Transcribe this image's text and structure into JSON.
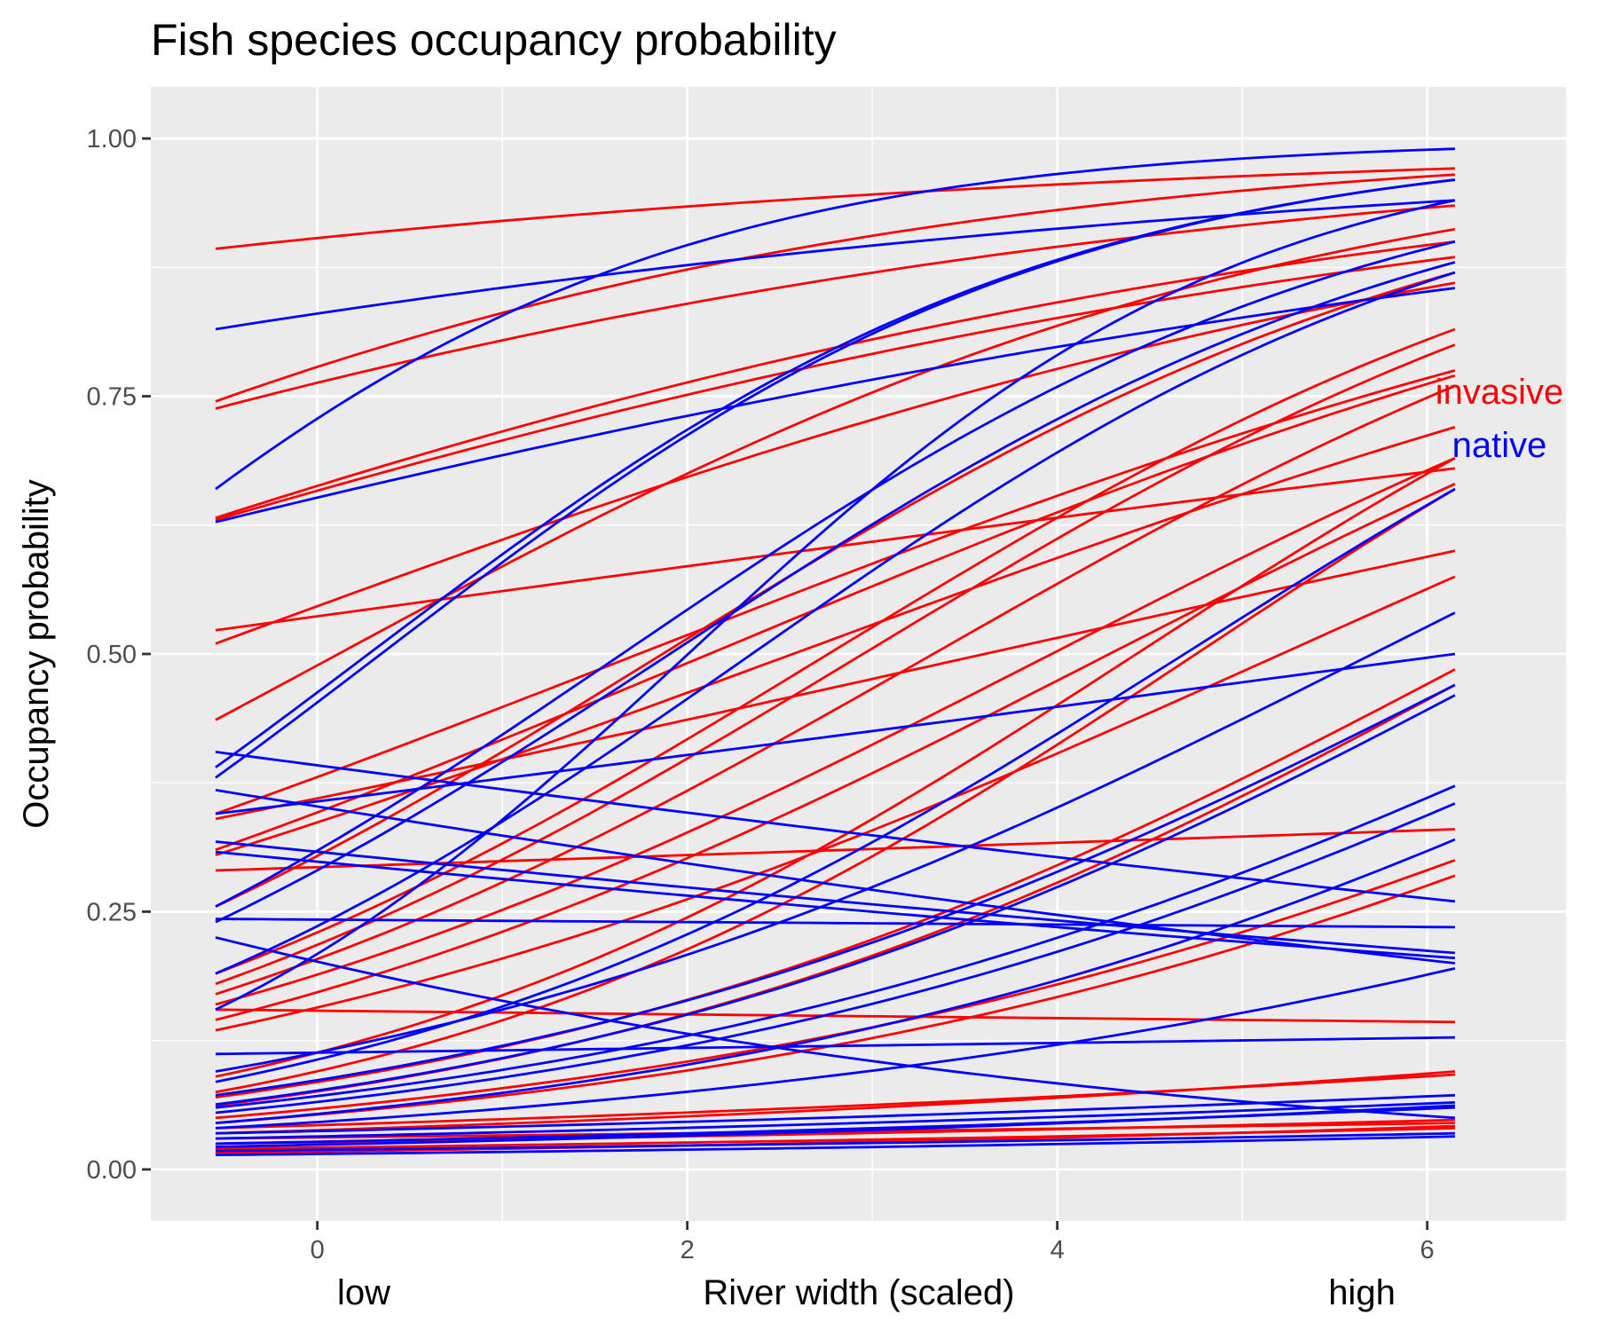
{
  "chart_data": {
    "type": "line",
    "title": "Fish species occupancy probability",
    "xlabel": "River width (scaled)",
    "ylabel": "Occupancy probability",
    "x_extra_labels": {
      "low": "low",
      "high": "high"
    },
    "xlim": [
      -0.9,
      6.75
    ],
    "ylim": [
      -0.05,
      1.05
    ],
    "x_ticks": [
      0,
      2,
      4,
      6
    ],
    "x_tick_labels": [
      "0",
      "2",
      "4",
      "6"
    ],
    "y_ticks": [
      0,
      0.25,
      0.5,
      0.75,
      1.0
    ],
    "y_tick_labels": [
      "0.00",
      "0.25",
      "0.50",
      "0.75",
      "1.00"
    ],
    "x_range": [
      -0.55,
      6.15
    ],
    "grid": true,
    "legend": "direct labels at right end",
    "colors": {
      "invasive": "#ff0000",
      "native": "#0000ff",
      "panel": "#ebebeb",
      "grid": "#ffffff"
    },
    "groups": [
      {
        "name": "invasive",
        "label": "invasive",
        "color": "#ff0000",
        "curves": [
          [
            0.893,
            0.971
          ],
          [
            0.745,
            0.965
          ],
          [
            0.738,
            0.935
          ],
          [
            0.632,
            0.9
          ],
          [
            0.63,
            0.885
          ],
          [
            0.523,
            0.68
          ],
          [
            0.51,
            0.86
          ],
          [
            0.436,
            0.912
          ],
          [
            0.345,
            0.775
          ],
          [
            0.34,
            0.6
          ],
          [
            0.31,
            0.77
          ],
          [
            0.305,
            0.72
          ],
          [
            0.29,
            0.33
          ],
          [
            0.255,
            0.87
          ],
          [
            0.19,
            0.815
          ],
          [
            0.18,
            0.8
          ],
          [
            0.17,
            0.76
          ],
          [
            0.16,
            0.69
          ],
          [
            0.155,
            0.143
          ],
          [
            0.145,
            0.665
          ],
          [
            0.135,
            0.575
          ],
          [
            0.09,
            0.69
          ],
          [
            0.075,
            0.66
          ],
          [
            0.07,
            0.485
          ],
          [
            0.062,
            0.47
          ],
          [
            0.05,
            0.3
          ],
          [
            0.045,
            0.285
          ],
          [
            0.04,
            0.092
          ],
          [
            0.035,
            0.095
          ],
          [
            0.03,
            0.045
          ],
          [
            0.025,
            0.048
          ],
          [
            0.02,
            0.04
          ],
          [
            0.016,
            0.042
          ]
        ]
      },
      {
        "name": "native",
        "label": "native",
        "color": "#0000ff",
        "curves": [
          [
            0.815,
            0.94
          ],
          [
            0.66,
            0.99
          ],
          [
            0.628,
            0.855
          ],
          [
            0.405,
            0.26
          ],
          [
            0.39,
            0.96
          ],
          [
            0.38,
            0.96
          ],
          [
            0.368,
            0.2
          ],
          [
            0.345,
            0.5
          ],
          [
            0.318,
            0.21
          ],
          [
            0.308,
            0.205
          ],
          [
            0.255,
            0.9
          ],
          [
            0.243,
            0.235
          ],
          [
            0.24,
            0.88
          ],
          [
            0.225,
            0.05
          ],
          [
            0.19,
            0.87
          ],
          [
            0.155,
            0.94
          ],
          [
            0.112,
            0.128
          ],
          [
            0.095,
            0.54
          ],
          [
            0.085,
            0.66
          ],
          [
            0.072,
            0.47
          ],
          [
            0.063,
            0.46
          ],
          [
            0.06,
            0.372
          ],
          [
            0.055,
            0.355
          ],
          [
            0.045,
            0.32
          ],
          [
            0.04,
            0.195
          ],
          [
            0.035,
            0.072
          ],
          [
            0.03,
            0.065
          ],
          [
            0.025,
            0.06
          ],
          [
            0.022,
            0.062
          ],
          [
            0.018,
            0.035
          ],
          [
            0.014,
            0.032
          ]
        ]
      }
    ]
  }
}
